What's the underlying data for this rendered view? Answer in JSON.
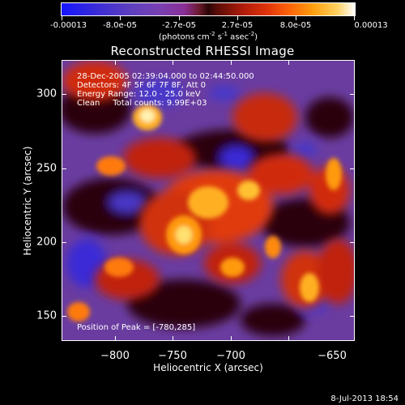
{
  "colorbar": {
    "ticks": [
      "-0.00013",
      "-8.0e-05",
      "-2.7e-05",
      "2.7e-05",
      "8.0e-05",
      "0.00013"
    ],
    "units_main": "(photons cm",
    "units_sup1": "-2",
    "units_mid": " s",
    "units_sup2": "-1",
    "units_mid2": " asec",
    "units_sup3": "-2",
    "units_end": ")"
  },
  "title": "Reconstructed RHESSI Image",
  "info": {
    "time_range": "28-Dec-2005 02:39:04.000 to 02:44:50.000",
    "detectors": "Detectors: 4F 5F 6F 7F 8F, Att 0",
    "energy": "Energy Range: 12.0 - 25.0 keV",
    "method": "Clean     Total counts: 9.99E+03",
    "peak": "Position of Peak = [-780,285]"
  },
  "x_axis": {
    "title": "Heliocentric X (arcsec)",
    "ticks": [
      "−800",
      "−750",
      "−700",
      "−650"
    ],
    "range": [
      -837,
      -634
    ]
  },
  "y_axis": {
    "title": "Heliocentric Y (arcsec)",
    "ticks": [
      "300",
      "250",
      "200",
      "150"
    ],
    "range": [
      128,
      332
    ]
  },
  "footer": {
    "stamp": "8-Jul-2013 18:54"
  },
  "colors": {
    "background": "#000000",
    "frame": "#ffffff",
    "negative_low": "#1515ff",
    "negative_mid": "#7a3fb0",
    "positive_mid": "#e0330a",
    "positive_high": "#ffffff"
  }
}
